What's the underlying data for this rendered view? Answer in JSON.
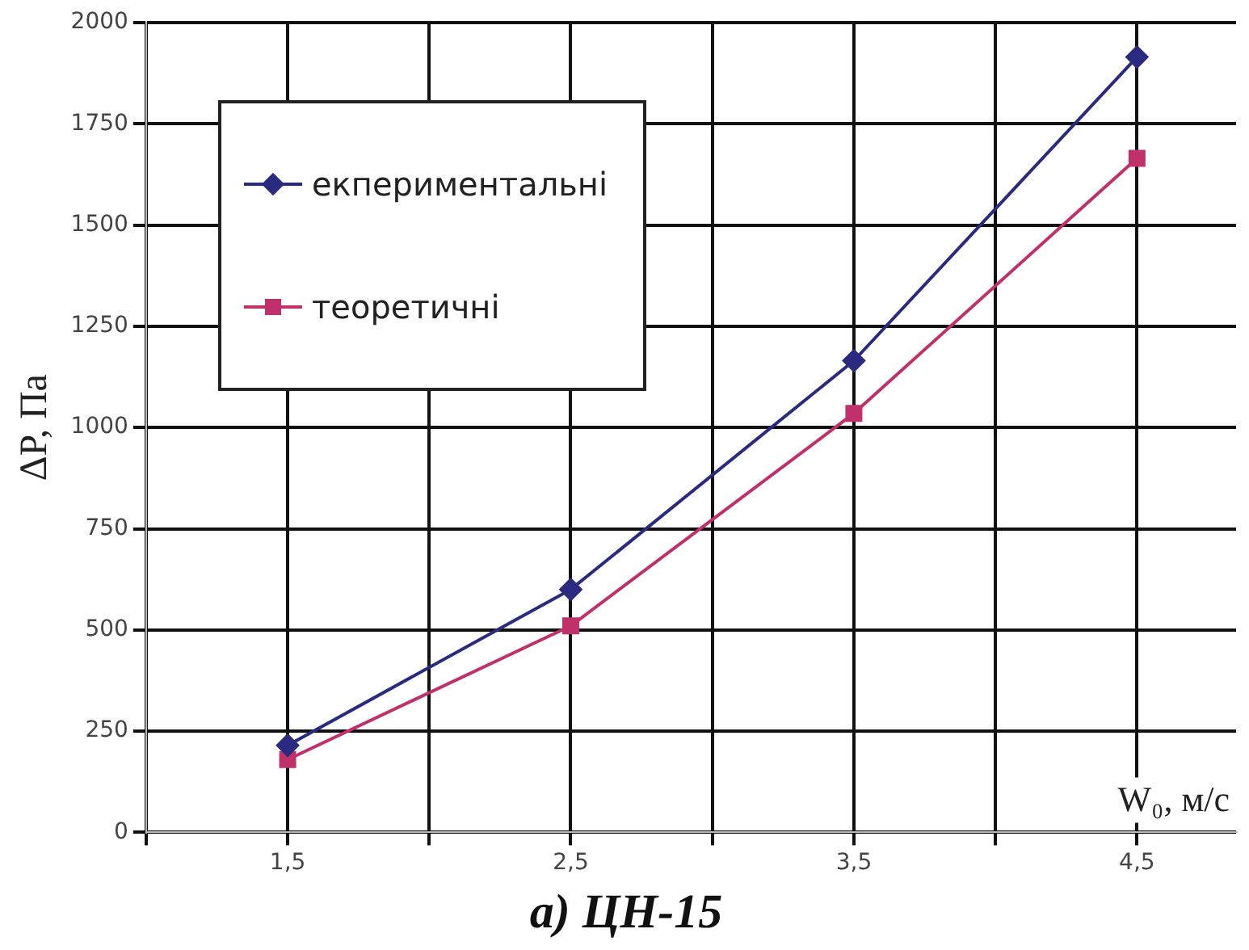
{
  "chart_data": {
    "type": "line",
    "title": "а) ЦН-15",
    "xlabel": "W₀, м/с",
    "ylabel": "ΔP, Па",
    "x": [
      1.5,
      2.5,
      3.5,
      4.5
    ],
    "series": [
      {
        "name": "екпериментальні",
        "color": "#2a2a80",
        "marker": "diamond",
        "values": [
          215,
          600,
          1165,
          1915
        ]
      },
      {
        "name": "теоретичні",
        "color": "#c0306a",
        "marker": "square",
        "values": [
          180,
          510,
          1035,
          1665
        ]
      }
    ],
    "xlim": [
      1,
      4.85
    ],
    "xticks": [
      {
        "value": 1,
        "label": null
      },
      {
        "value": 1.5,
        "label": "1,5"
      },
      {
        "value": 2,
        "label": null
      },
      {
        "value": 2.5,
        "label": "2,5"
      },
      {
        "value": 3,
        "label": null
      },
      {
        "value": 3.5,
        "label": "3,5"
      },
      {
        "value": 4,
        "label": null
      },
      {
        "value": 4.5,
        "label": "4,5"
      }
    ],
    "ylim": [
      0,
      2000
    ],
    "yticks": [
      0,
      250,
      500,
      750,
      1000,
      1250,
      1500,
      1750,
      2000
    ],
    "grid": true,
    "legend": "top left",
    "line_style": "solid"
  }
}
